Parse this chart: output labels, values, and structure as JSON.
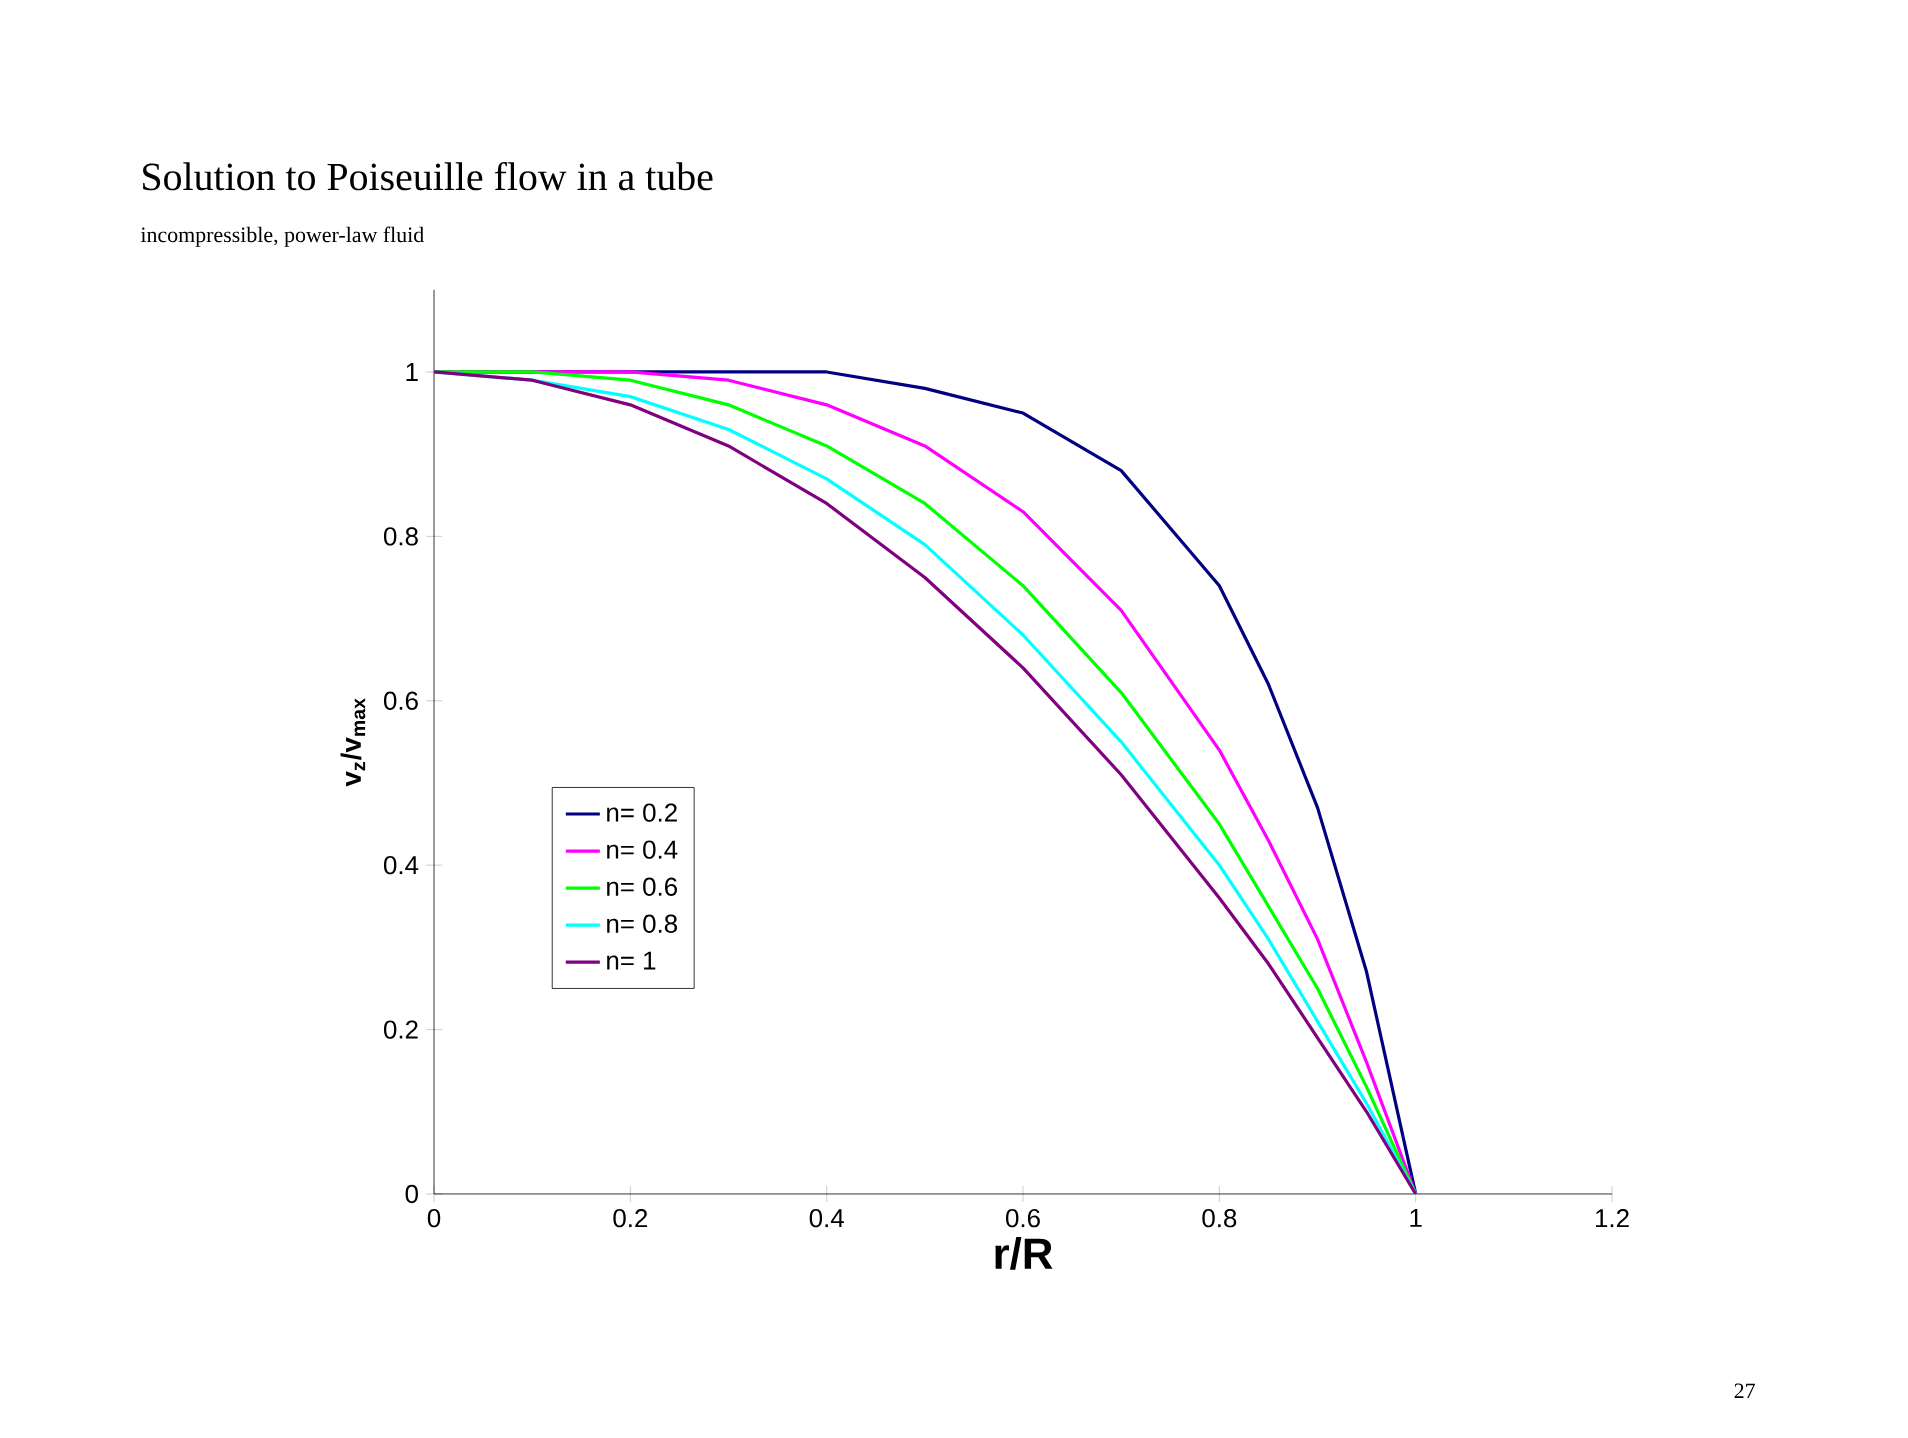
{
  "chart_data": {
    "type": "line",
    "title": "Solution to Poiseuille flow in a tube",
    "subtitle": "incompressible, power-law fluid",
    "xlabel": "r/R",
    "ylabel": "**v$_{z}$/v$_{max}$**",
    "annotations": [
      "27"
    ],
    "x": [
      0,
      0.1,
      0.2,
      0.3,
      0.4,
      0.5,
      0.6,
      0.7,
      0.8,
      0.85,
      0.9,
      0.95,
      1
    ],
    "series": [
      {
        "name": "n= 0.2",
        "color": "#000080",
        "values": [
          1,
          1,
          1,
          1,
          1,
          0.98,
          0.95,
          0.88,
          0.74,
          0.62,
          0.47,
          0.27,
          0
        ]
      },
      {
        "name": "n= 0.4",
        "color": "#ff00ff",
        "values": [
          1,
          1,
          1,
          0.99,
          0.96,
          0.91,
          0.83,
          0.71,
          0.54,
          0.43,
          0.31,
          0.16,
          0
        ]
      },
      {
        "name": "n= 0.6",
        "color": "#00ff00",
        "values": [
          1,
          1,
          0.99,
          0.96,
          0.91,
          0.84,
          0.74,
          0.61,
          0.45,
          0.35,
          0.25,
          0.13,
          0
        ]
      },
      {
        "name": "n= 0.8",
        "color": "#00ffff",
        "values": [
          1,
          0.99,
          0.97,
          0.93,
          0.87,
          0.79,
          0.68,
          0.55,
          0.4,
          0.31,
          0.21,
          0.11,
          0
        ]
      },
      {
        "name": "n= 1",
        "color": "#800080",
        "values": [
          1,
          0.99,
          0.96,
          0.91,
          0.84,
          0.75,
          0.64,
          0.51,
          0.36,
          0.28,
          0.19,
          0.1,
          0
        ]
      }
    ],
    "xlim": [
      0,
      1.2
    ],
    "ylim": [
      0,
      1.1
    ],
    "xticks": [
      0,
      0.2,
      0.4,
      0.6,
      0.8,
      1,
      1.2
    ],
    "yticks": [
      0,
      0.2,
      0.4,
      0.6,
      0.8,
      1
    ],
    "legend": "left",
    "marker": "none",
    "line_style": "solid",
    "grid": false
  }
}
